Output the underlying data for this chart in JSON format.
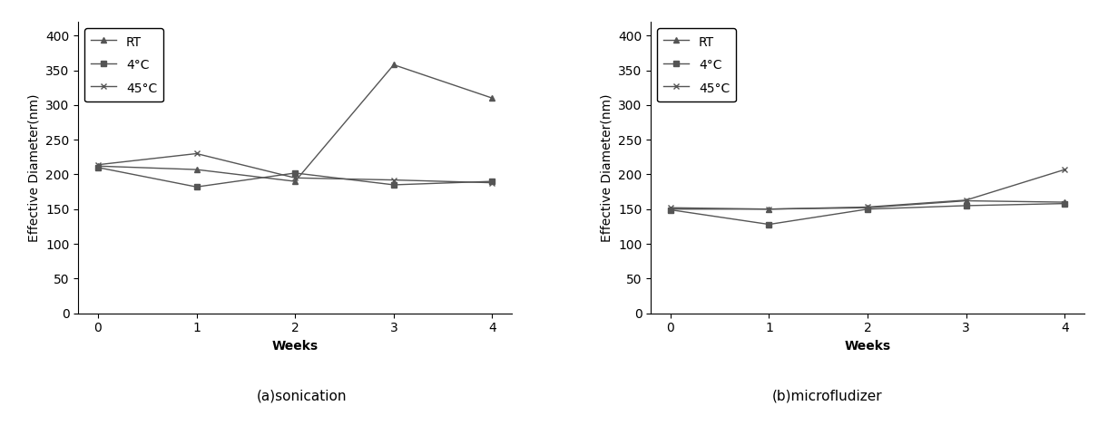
{
  "sonication": {
    "weeks": [
      0,
      1,
      2,
      3,
      4
    ],
    "RT": [
      212,
      207,
      190,
      358,
      310
    ],
    "4C": [
      210,
      182,
      202,
      185,
      190
    ],
    "45C": [
      214,
      230,
      195,
      192,
      188
    ]
  },
  "microfludizer": {
    "weeks": [
      0,
      1,
      2,
      3,
      4
    ],
    "RT": [
      150,
      150,
      152,
      162,
      160
    ],
    "4C": [
      149,
      128,
      150,
      155,
      158
    ],
    "45C": [
      152,
      150,
      153,
      163,
      207
    ]
  },
  "line_color": "#555555",
  "marker_RT": "^",
  "marker_4C": "s",
  "marker_45C": "x",
  "ylabel": "Effective Diameter(nm)",
  "xlabel": "Weeks",
  "ylim": [
    0,
    420
  ],
  "yticks": [
    0,
    50,
    100,
    150,
    200,
    250,
    300,
    350,
    400
  ],
  "xticks": [
    0,
    1,
    2,
    3,
    4
  ],
  "legend_labels": [
    "RT",
    "4°C",
    "45°C"
  ],
  "subtitle_a": "(a)sonication",
  "subtitle_b": "(b)microfludizer",
  "title_fontsize": 11,
  "axis_fontsize": 10,
  "tick_fontsize": 10,
  "legend_fontsize": 10,
  "linewidth": 1.0,
  "markersize": 5
}
